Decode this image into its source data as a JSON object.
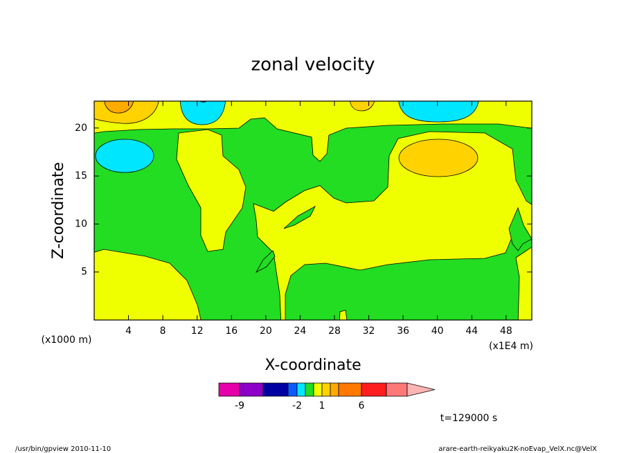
{
  "chart_data": {
    "type": "contour",
    "title": "zonal velocity",
    "xlabel": "X-coordinate",
    "ylabel": "Z-coordinate",
    "x_unit": "(x1E4 m)",
    "y_unit": "(x1000 m)",
    "xlim": [
      0,
      51
    ],
    "ylim": [
      0,
      22.8
    ],
    "xticks": [
      4,
      8,
      12,
      16,
      20,
      24,
      28,
      32,
      36,
      40,
      44,
      48
    ],
    "yticks": [
      5,
      10,
      15,
      20
    ],
    "colorbar": {
      "levels": [
        -12,
        -9,
        -6,
        -3,
        -2,
        -1,
        0,
        1,
        2,
        3,
        6,
        9,
        12
      ],
      "colors": [
        "#e600aa",
        "#8c00c8",
        "#0000a0",
        "#0a5aff",
        "#00e6ff",
        "#22dd22",
        "#f0ff00",
        "#ffd200",
        "#ffaa00",
        "#ff7800",
        "#ff1e1e",
        "#ff7878",
        "#ffb4b4"
      ],
      "ticks": [
        -9,
        -2,
        1,
        6
      ]
    },
    "annotation": "t=129000 s"
  },
  "footer": {
    "left": "/usr/bin/gpview  2010-11-10",
    "right": "arare-earth-reikyaku2K-noEvap_VelX.nc@VelX"
  }
}
